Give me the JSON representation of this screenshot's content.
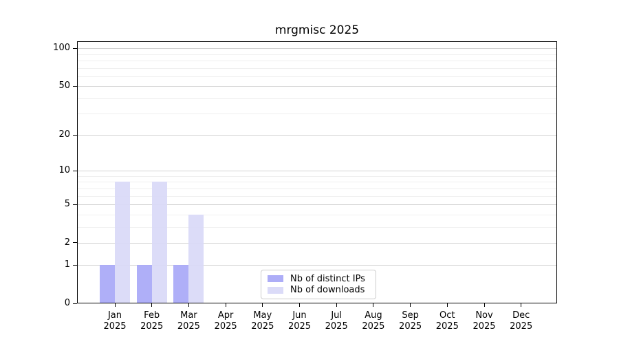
{
  "chart_data": {
    "type": "bar",
    "title": "mrgmisc 2025",
    "categories": [
      {
        "month": "Jan",
        "year": "2025"
      },
      {
        "month": "Feb",
        "year": "2025"
      },
      {
        "month": "Mar",
        "year": "2025"
      },
      {
        "month": "Apr",
        "year": "2025"
      },
      {
        "month": "May",
        "year": "2025"
      },
      {
        "month": "Jun",
        "year": "2025"
      },
      {
        "month": "Jul",
        "year": "2025"
      },
      {
        "month": "Aug",
        "year": "2025"
      },
      {
        "month": "Sep",
        "year": "2025"
      },
      {
        "month": "Oct",
        "year": "2025"
      },
      {
        "month": "Nov",
        "year": "2025"
      },
      {
        "month": "Dec",
        "year": "2025"
      }
    ],
    "series": [
      {
        "name": "Nb of distinct IPs",
        "color": "#a9a9f7",
        "values": [
          1,
          1,
          1,
          0,
          0,
          0,
          0,
          0,
          0,
          0,
          0,
          0
        ]
      },
      {
        "name": "Nb of downloads",
        "color": "#d9d9f8",
        "values": [
          8,
          8,
          4,
          0,
          0,
          0,
          0,
          0,
          0,
          0,
          0,
          0
        ]
      }
    ],
    "y_axis": {
      "scale": "log1p",
      "ticks": [
        0,
        1,
        2,
        5,
        10,
        20,
        50,
        100
      ],
      "minor_ticks": [
        3,
        4,
        6,
        7,
        8,
        9,
        30,
        40,
        60,
        70,
        80,
        90
      ],
      "ylim": [
        0,
        113
      ]
    },
    "grid": {
      "on": true,
      "major_color": "#d2d2d2",
      "minor_color": "#efefef"
    },
    "legend": {
      "position": "bottom-center"
    },
    "colors": {
      "background": "#ffffff",
      "axis": "#000000",
      "text": "#000000"
    }
  }
}
